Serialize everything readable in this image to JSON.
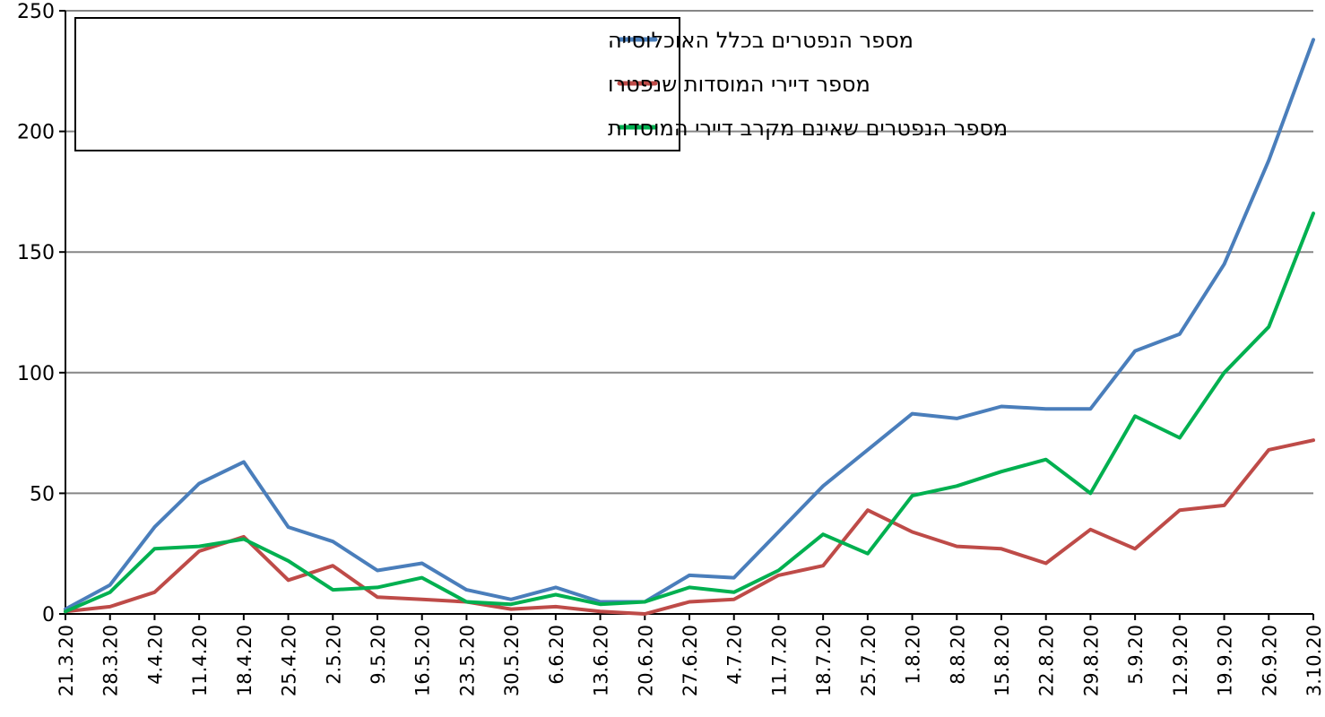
{
  "chart_data": {
    "type": "line",
    "title": "",
    "xlabel": "",
    "ylabel": "",
    "ylim": [
      0,
      250
    ],
    "yticks": [
      0,
      50,
      100,
      150,
      200,
      250
    ],
    "grid": "horizontal",
    "legend_position": "top-left",
    "categories": [
      "21.3.20",
      "28.3.20",
      "4.4.20",
      "11.4.20",
      "18.4.20",
      "25.4.20",
      "2.5.20",
      "9.5.20",
      "16.5.20",
      "23.5.20",
      "30.5.20",
      "6.6.20",
      "13.6.20",
      "20.6.20",
      "27.6.20",
      "4.7.20",
      "11.7.20",
      "18.7.20",
      "25.7.20",
      "1.8.20",
      "8.8.20",
      "15.8.20",
      "22.8.20",
      "29.8.20",
      "5.9.20",
      "12.9.20",
      "19.9.20",
      "26.9.20",
      "3.10.20"
    ],
    "series": [
      {
        "name": "מספר הנפטרים בכלל האוכלוסייה",
        "color": "#4a7ebb",
        "values": [
          2,
          12,
          36,
          54,
          63,
          36,
          30,
          18,
          21,
          10,
          6,
          11,
          5,
          5,
          16,
          15,
          34,
          53,
          68,
          83,
          81,
          86,
          85,
          85,
          109,
          116,
          145,
          188,
          238
        ]
      },
      {
        "name": "מספר דיירי המוסדות שנפטרו",
        "color": "#be4b48",
        "values": [
          1,
          3,
          9,
          26,
          32,
          14,
          20,
          7,
          6,
          5,
          2,
          3,
          1,
          0,
          5,
          6,
          16,
          20,
          43,
          34,
          28,
          27,
          21,
          35,
          27,
          43,
          45,
          68,
          72
        ]
      },
      {
        "name": "מספר הנפטרים שאינם מקרב דיירי המוסדות",
        "color": "#00b050",
        "values": [
          1,
          9,
          27,
          28,
          31,
          22,
          10,
          11,
          15,
          5,
          4,
          8,
          4,
          5,
          11,
          9,
          18,
          33,
          25,
          49,
          53,
          59,
          64,
          50,
          82,
          73,
          100,
          119,
          166
        ]
      }
    ]
  }
}
